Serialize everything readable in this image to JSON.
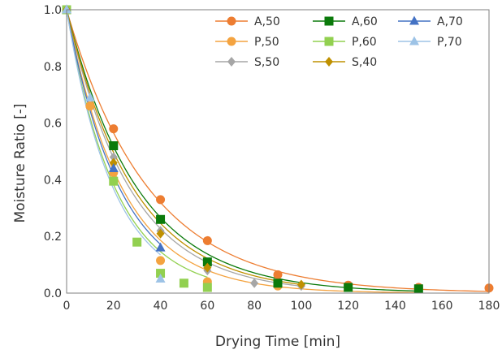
{
  "chart_data": {
    "type": "scatter",
    "xlabel": "Drying Time [min]",
    "ylabel": "Moisture Ratio [-]",
    "xlim": [
      0,
      180
    ],
    "ylim": [
      0,
      1.0
    ],
    "x_ticks": [
      "0",
      "20",
      "40",
      "60",
      "80",
      "100",
      "120",
      "140",
      "160",
      "180"
    ],
    "y_ticks": [
      "0.0",
      "0.2",
      "0.4",
      "0.6",
      "0.8",
      "1.0"
    ],
    "grid": false,
    "legend_position": "top-right",
    "series": [
      {
        "name": "A,50",
        "color": "#ED7D31",
        "marker": "circle",
        "x": [
          0,
          10,
          20,
          40,
          60,
          90,
          120,
          150,
          180
        ],
        "y": [
          1.0,
          0.66,
          0.58,
          0.33,
          0.185,
          0.065,
          0.028,
          0.02,
          0.018
        ],
        "k": 0.0285
      },
      {
        "name": "P,50",
        "color": "#F4A340",
        "marker": "circle",
        "x": [
          0,
          10,
          20,
          40,
          60,
          90,
          120,
          150
        ],
        "y": [
          1.0,
          0.66,
          0.425,
          0.115,
          0.04,
          0.025,
          0.02,
          0.015
        ],
        "k": 0.042
      },
      {
        "name": "S,50",
        "color": "#A6A6A6",
        "marker": "diamond",
        "x": [
          0,
          20,
          40,
          60,
          80,
          100
        ],
        "y": [
          1.0,
          0.48,
          0.22,
          0.08,
          0.035,
          0.025
        ],
        "k": 0.037
      },
      {
        "name": "A,60",
        "color": "#0B7A0B",
        "marker": "square",
        "x": [
          0,
          20,
          40,
          60,
          90,
          120,
          150
        ],
        "y": [
          1.0,
          0.52,
          0.26,
          0.11,
          0.035,
          0.02,
          0.015
        ],
        "k": 0.033
      },
      {
        "name": "P,60",
        "color": "#92D050",
        "marker": "square",
        "x": [
          0,
          20,
          30,
          40,
          50,
          60
        ],
        "y": [
          1.0,
          0.395,
          0.18,
          0.07,
          0.035,
          0.02
        ],
        "k": 0.048
      },
      {
        "name": "S,40",
        "color": "#BF9000",
        "marker": "diamond",
        "x": [
          0,
          20,
          40,
          60,
          100
        ],
        "y": [
          1.0,
          0.46,
          0.21,
          0.09,
          0.03
        ],
        "k": 0.035
      },
      {
        "name": "A,70",
        "color": "#4472C4",
        "marker": "triangle",
        "x": [
          0,
          20,
          40
        ],
        "y": [
          1.0,
          0.44,
          0.16
        ],
        "k": 0.044
      },
      {
        "name": "P,70",
        "color": "#9DC3E6",
        "marker": "triangle",
        "x": [
          0,
          10,
          40
        ],
        "y": [
          1.0,
          0.69,
          0.05
        ],
        "k": 0.05
      }
    ]
  }
}
